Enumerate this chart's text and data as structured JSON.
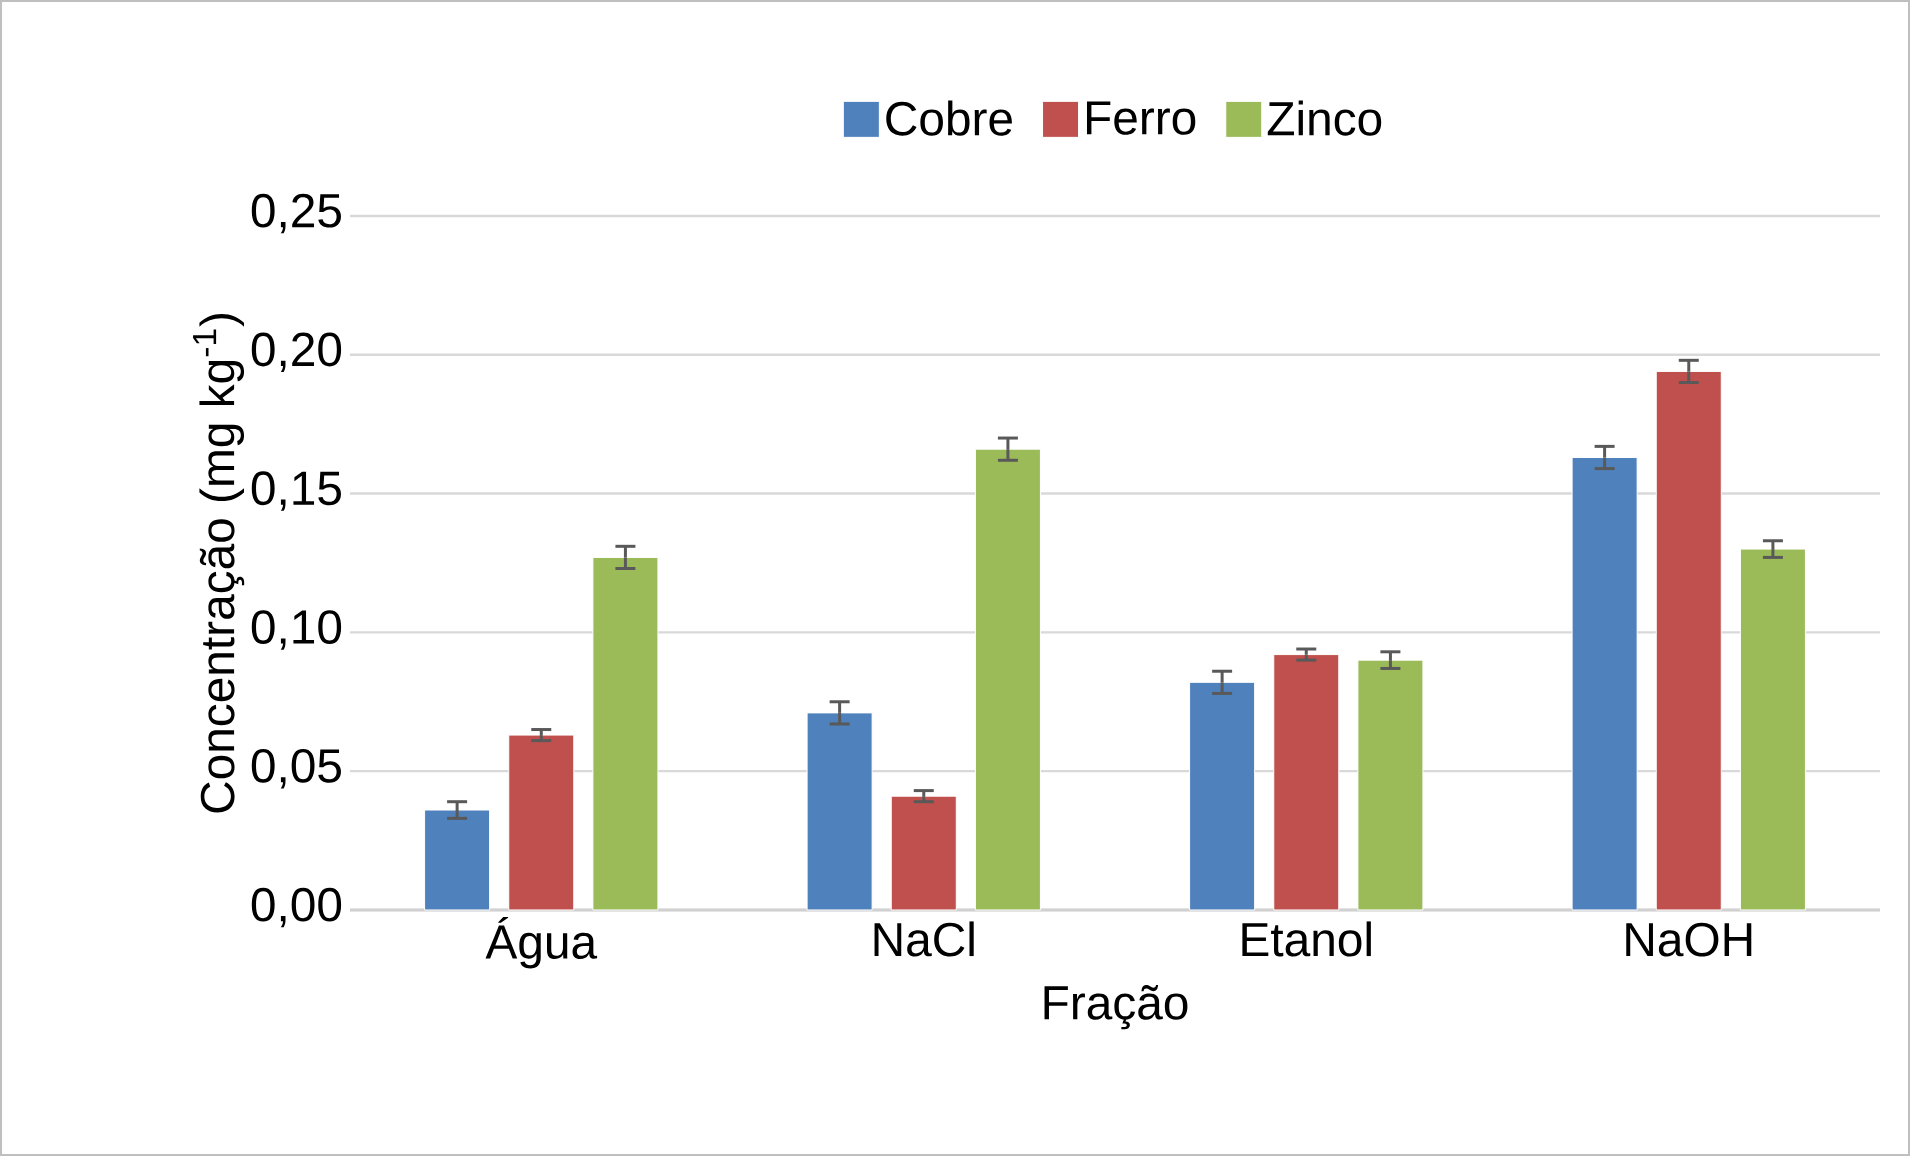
{
  "chart_data": {
    "type": "bar",
    "xlabel": "Fração",
    "ylabel": "Concentração (mg kg$^{-1}$)",
    "categories": [
      "Água",
      "NaCl",
      "Etanol",
      "NaOH"
    ],
    "series": [
      {
        "name": "Cobre",
        "color": "#4f81bd",
        "values": [
          0.036,
          0.071,
          0.082,
          0.163
        ],
        "errors": [
          0.003,
          0.004,
          0.004,
          0.004
        ]
      },
      {
        "name": "Ferro",
        "color": "#c0504d",
        "values": [
          0.063,
          0.041,
          0.092,
          0.194
        ],
        "errors": [
          0.002,
          0.002,
          0.002,
          0.004
        ]
      },
      {
        "name": "Zinco",
        "color": "#9bbb59",
        "values": [
          0.127,
          0.166,
          0.09,
          0.13
        ],
        "errors": [
          0.004,
          0.004,
          0.003,
          0.003
        ]
      }
    ],
    "ylim": [
      0,
      0.25
    ],
    "yticks": [
      {
        "value": 0,
        "label": "0,00"
      },
      {
        "value": 0.05,
        "label": "0,05"
      },
      {
        "value": 0.1,
        "label": "0,10"
      },
      {
        "value": 0.15,
        "label": "0,15"
      },
      {
        "value": 0.2,
        "label": "0,20"
      },
      {
        "value": 0.25,
        "label": "0,25"
      }
    ],
    "grid": "y",
    "legend": "top"
  }
}
